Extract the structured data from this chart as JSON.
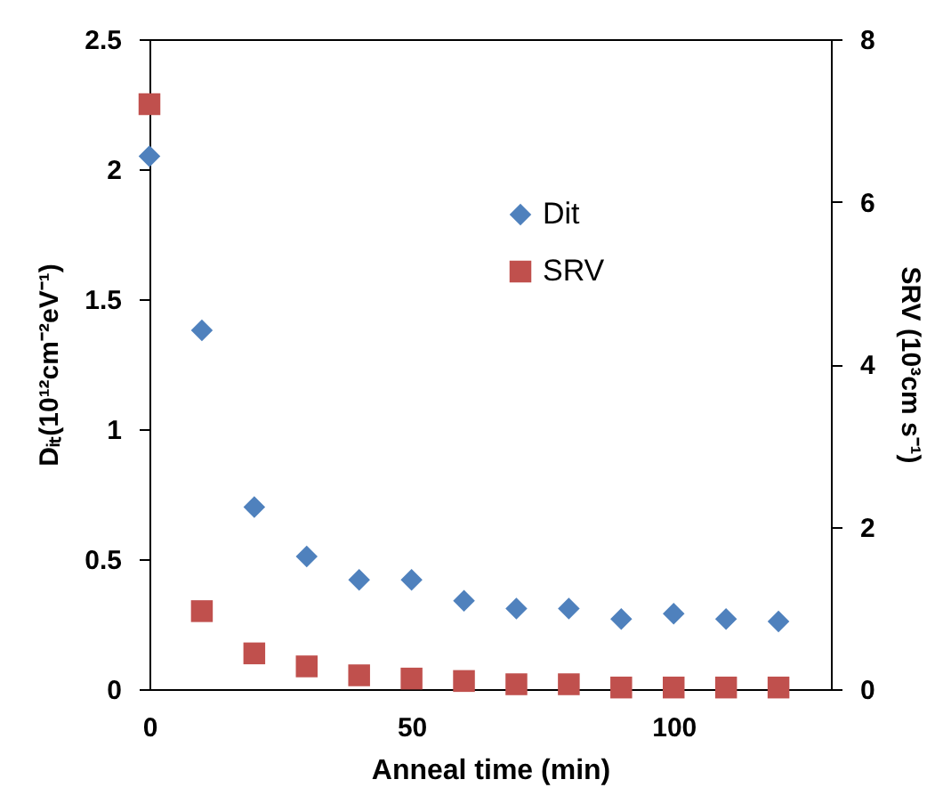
{
  "chart_data": {
    "type": "scatter",
    "xlabel": "Anneal time (min)",
    "ylabel": "Dᵢₜ(10¹²cm⁻²eV⁻¹)",
    "y2label": "SRV (10³cm s⁻¹)",
    "x": [
      0,
      10,
      20,
      30,
      40,
      50,
      60,
      70,
      80,
      90,
      100,
      110,
      120
    ],
    "series": [
      {
        "name": "Dit",
        "color": "#4f81bd",
        "marker": "diamond",
        "values": [
          2.05,
          1.38,
          0.7,
          0.51,
          0.42,
          0.42,
          0.34,
          0.31,
          0.31,
          0.27,
          0.29,
          0.27,
          0.26
        ]
      },
      {
        "name": "SRV",
        "color": "#c0504d",
        "marker": "square",
        "axis": "y2",
        "values": [
          7.2,
          0.96,
          0.44,
          0.28,
          0.17,
          0.13,
          0.1,
          0.06,
          0.06,
          0.02,
          0.02,
          0.02,
          0.02
        ]
      }
    ],
    "xlim": [
      0,
      130
    ],
    "xticks": [
      0,
      50,
      100
    ],
    "ylim": [
      0,
      2.5
    ],
    "yticks": [
      0,
      0.5,
      1,
      1.5,
      2,
      2.5
    ],
    "y2lim": [
      0,
      8
    ],
    "y2ticks": [
      0,
      2,
      4,
      6,
      8
    ],
    "grid": false,
    "legend": "top right"
  }
}
